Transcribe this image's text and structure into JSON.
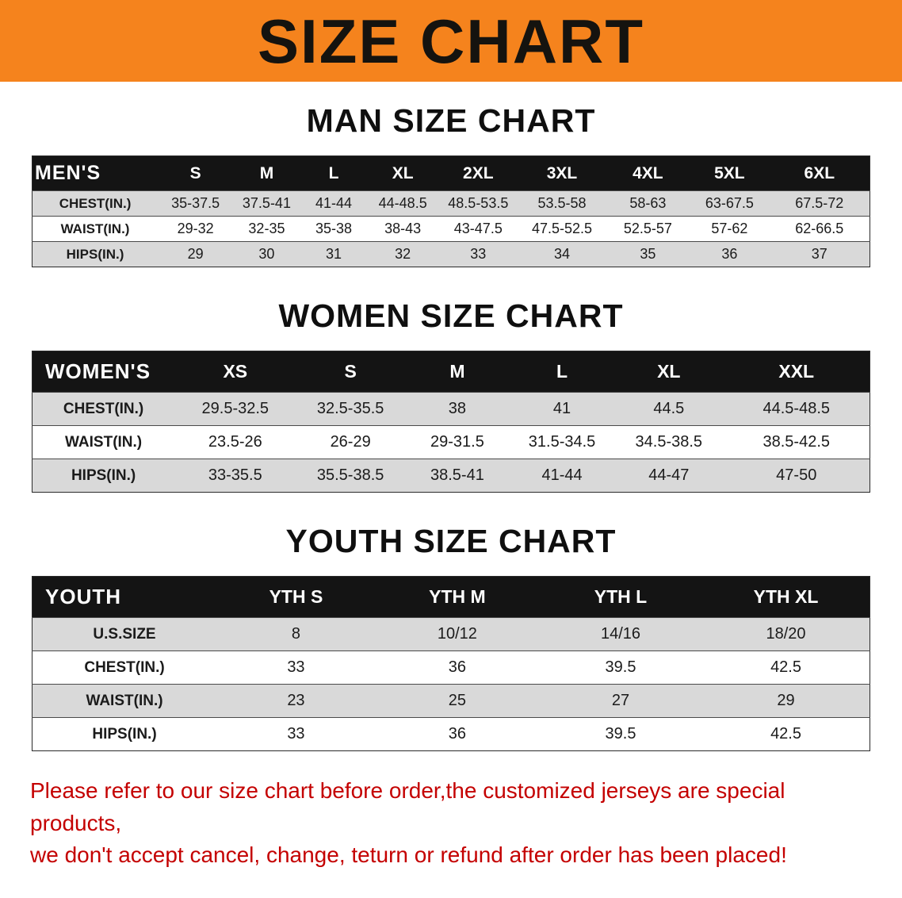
{
  "banner": {
    "title": "SIZE CHART",
    "bg_color": "#f5831d",
    "text_color": "#15130f"
  },
  "sections": [
    {
      "id": "men",
      "heading": "MAN SIZE CHART",
      "table": {
        "header": [
          "MEN'S",
          "S",
          "M",
          "L",
          "XL",
          "2XL",
          "3XL",
          "4XL",
          "5XL",
          "6XL"
        ],
        "rows": [
          [
            "CHEST(IN.)",
            "35-37.5",
            "37.5-41",
            "41-44",
            "44-48.5",
            "48.5-53.5",
            "53.5-58",
            "58-63",
            "63-67.5",
            "67.5-72"
          ],
          [
            "WAIST(IN.)",
            "29-32",
            "32-35",
            "35-38",
            "38-43",
            "43-47.5",
            "47.5-52.5",
            "52.5-57",
            "57-62",
            "62-66.5"
          ],
          [
            "HIPS(IN.)",
            "29",
            "30",
            "31",
            "32",
            "33",
            "34",
            "35",
            "36",
            "37"
          ]
        ]
      }
    },
    {
      "id": "women",
      "heading": "WOMEN SIZE CHART",
      "table": {
        "header": [
          "WOMEN'S",
          "XS",
          "S",
          "M",
          "L",
          "XL",
          "XXL"
        ],
        "rows": [
          [
            "CHEST(IN.)",
            "29.5-32.5",
            "32.5-35.5",
            "38",
            "41",
            "44.5",
            "44.5-48.5"
          ],
          [
            "WAIST(IN.)",
            "23.5-26",
            "26-29",
            "29-31.5",
            "31.5-34.5",
            "34.5-38.5",
            "38.5-42.5"
          ],
          [
            "HIPS(IN.)",
            "33-35.5",
            "35.5-38.5",
            "38.5-41",
            "41-44",
            "44-47",
            "47-50"
          ]
        ]
      }
    },
    {
      "id": "youth",
      "heading": "YOUTH SIZE CHART",
      "table": {
        "header": [
          "YOUTH",
          "YTH S",
          "YTH M",
          "YTH L",
          "YTH XL"
        ],
        "rows": [
          [
            "U.S.SIZE",
            "8",
            "10/12",
            "14/16",
            "18/20"
          ],
          [
            "CHEST(IN.)",
            "33",
            "36",
            "39.5",
            "42.5"
          ],
          [
            "WAIST(IN.)",
            "23",
            "25",
            "27",
            "29"
          ],
          [
            "HIPS(IN.)",
            "33",
            "36",
            "39.5",
            "42.5"
          ]
        ]
      }
    }
  ],
  "footer": {
    "line1": "Please refer to our size chart before order,the customized jerseys are special products,",
    "line2": "we don't accept cancel, change, teturn or refund after order has been placed!",
    "color": "#c40000"
  }
}
